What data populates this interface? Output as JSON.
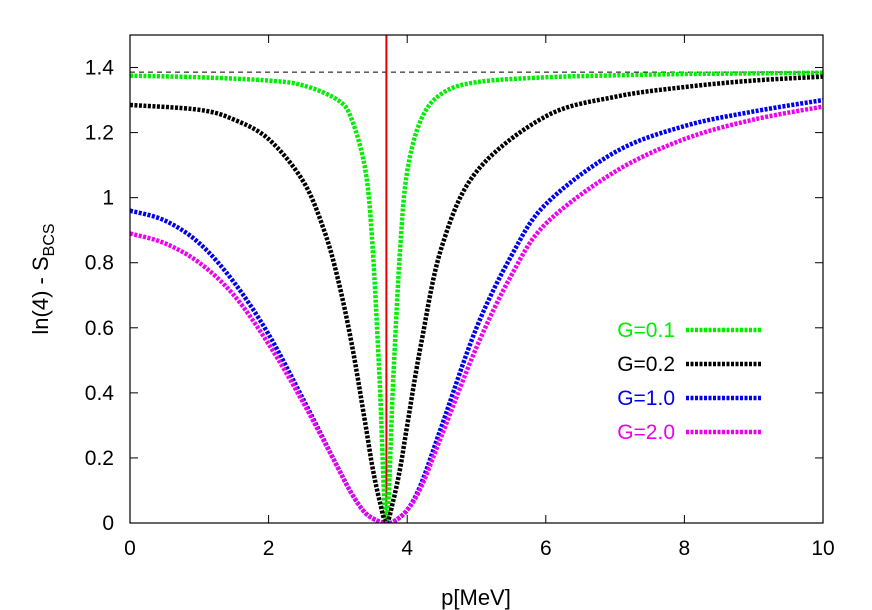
{
  "chart_data": {
    "type": "line",
    "xlabel": "p[MeV]",
    "ylabel": "ln(4) - S",
    "ylabel_subscript": "BCS",
    "xlim": [
      0,
      10
    ],
    "ylim": [
      0,
      1.5
    ],
    "xticks": [
      "0",
      "2",
      "4",
      "6",
      "8",
      "10"
    ],
    "yticks": [
      "0",
      "0.2",
      "0.4",
      "0.6",
      "0.8",
      "1",
      "1.2",
      "1.4"
    ],
    "grid": false,
    "legend_position": "right-center",
    "reference_lines": [
      {
        "type": "horizontal",
        "y": 1.386,
        "style": "dashed",
        "color": "#000000"
      },
      {
        "type": "vertical",
        "x": 3.7,
        "style": "solid",
        "color": "#e00000"
      }
    ],
    "series": [
      {
        "name": "G=0.1",
        "color": "#00ee00",
        "x": [
          0,
          1,
          2,
          2.5,
          3,
          3.2,
          3.4,
          3.5,
          3.6,
          3.7,
          3.8,
          3.9,
          4.0,
          4.2,
          4.5,
          5,
          6,
          7,
          8,
          9,
          10
        ],
        "y": [
          1.375,
          1.37,
          1.36,
          1.345,
          1.3,
          1.24,
          1.08,
          0.85,
          0.45,
          0.0,
          0.45,
          0.85,
          1.08,
          1.24,
          1.32,
          1.355,
          1.37,
          1.376,
          1.38,
          1.382,
          1.384
        ]
      },
      {
        "name": "G=0.2",
        "color": "#000000",
        "x": [
          0,
          1,
          1.5,
          2,
          2.5,
          2.8,
          3.0,
          3.2,
          3.4,
          3.5,
          3.6,
          3.7,
          3.8,
          3.9,
          4.0,
          4.2,
          4.5,
          5,
          6,
          7,
          8,
          9,
          10
        ],
        "y": [
          1.285,
          1.27,
          1.24,
          1.18,
          1.05,
          0.9,
          0.75,
          0.55,
          0.3,
          0.17,
          0.07,
          0.0,
          0.07,
          0.17,
          0.3,
          0.55,
          0.85,
          1.08,
          1.25,
          1.31,
          1.34,
          1.36,
          1.372
        ]
      },
      {
        "name": "G=1.0",
        "color": "#0000ee",
        "x": [
          0,
          0.5,
          1,
          1.5,
          2,
          2.5,
          3,
          3.2,
          3.4,
          3.6,
          3.7,
          3.8,
          4.0,
          4.2,
          4.5,
          5,
          5.5,
          6,
          7,
          8,
          9,
          10
        ],
        "y": [
          0.96,
          0.93,
          0.86,
          0.74,
          0.58,
          0.38,
          0.17,
          0.09,
          0.03,
          0.004,
          0.0,
          0.004,
          0.04,
          0.12,
          0.3,
          0.6,
          0.82,
          0.98,
          1.14,
          1.22,
          1.265,
          1.3
        ]
      },
      {
        "name": "G=2.0",
        "color": "#ee00ee",
        "x": [
          0,
          0.5,
          1,
          1.5,
          2,
          2.5,
          3,
          3.2,
          3.4,
          3.6,
          3.7,
          3.8,
          4.0,
          4.2,
          4.5,
          5,
          5.5,
          6,
          7,
          8,
          9,
          10
        ],
        "y": [
          0.89,
          0.86,
          0.8,
          0.7,
          0.55,
          0.37,
          0.17,
          0.09,
          0.03,
          0.004,
          0.0,
          0.004,
          0.04,
          0.11,
          0.27,
          0.54,
          0.76,
          0.92,
          1.08,
          1.18,
          1.24,
          1.28
        ]
      }
    ]
  }
}
